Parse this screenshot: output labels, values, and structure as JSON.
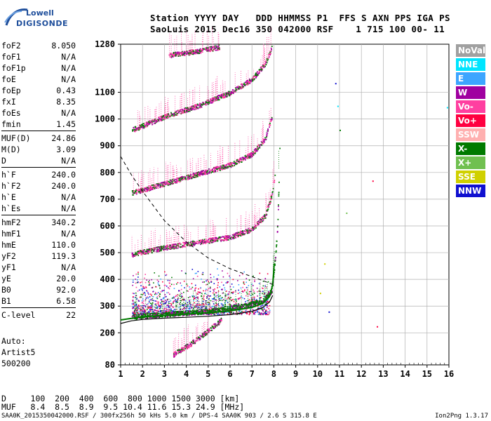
{
  "logo": {
    "line1": "Lowell",
    "line2": "DIGISONDE"
  },
  "header": {
    "line1": "Station YYYY DAY   DDD HHMMSS P1  FFS S AXN PPS IGA PS",
    "line2": "SaoLuis 2015 Dec16 350 042000 RSF    1 715 100 00- 11"
  },
  "params": [
    [
      {
        "n": "foF2",
        "v": "8.050"
      },
      {
        "n": "foF1",
        "v": "N/A"
      },
      {
        "n": "foF1p",
        "v": "N/A"
      },
      {
        "n": "foE",
        "v": "N/A"
      },
      {
        "n": "foEp",
        "v": "0.43"
      },
      {
        "n": "fxI",
        "v": "8.35"
      },
      {
        "n": "foEs",
        "v": "N/A"
      },
      {
        "n": "fmin",
        "v": "1.45"
      }
    ],
    [
      {
        "n": "MUF(D)",
        "v": "24.86"
      },
      {
        "n": "M(D)",
        "v": "3.09"
      },
      {
        "n": "D",
        "v": "N/A"
      }
    ],
    [
      {
        "n": "h`F",
        "v": "240.0"
      },
      {
        "n": "h`F2",
        "v": "240.0"
      },
      {
        "n": "h`E",
        "v": "N/A"
      },
      {
        "n": "h`Es",
        "v": "N/A"
      }
    ],
    [
      {
        "n": "hmF2",
        "v": "340.2"
      },
      {
        "n": "hmF1",
        "v": "N/A"
      },
      {
        "n": "hmE",
        "v": "110.0"
      },
      {
        "n": "yF2",
        "v": "119.3"
      },
      {
        "n": "yF1",
        "v": "N/A"
      },
      {
        "n": "yE",
        "v": "20.0"
      },
      {
        "n": "B0",
        "v": "92.0"
      },
      {
        "n": "B1",
        "v": "6.58"
      }
    ],
    [
      {
        "n": "C-level",
        "v": "22"
      }
    ]
  ],
  "auto": {
    "line1": "Auto:",
    "line2": "Artist5",
    "line3": "500200"
  },
  "legend": [
    {
      "label": "NoVal",
      "color": "#a0a0a0"
    },
    {
      "label": "NNE",
      "color": "#00e5ff"
    },
    {
      "label": "E",
      "color": "#3da5ff"
    },
    {
      "label": "W",
      "color": "#a000a0"
    },
    {
      "label": "Vo-",
      "color": "#ff3fa0"
    },
    {
      "label": "Vo+",
      "color": "#ff0040"
    },
    {
      "label": "SSW",
      "color": "#ffb0b0"
    },
    {
      "label": "X-",
      "color": "#007a00"
    },
    {
      "label": "X+",
      "color": "#70c050"
    },
    {
      "label": "SSE",
      "color": "#d0d000"
    },
    {
      "label": "NNW",
      "color": "#1010d0"
    }
  ],
  "muf_table": {
    "line1": "D     100  200  400  600  800 1000 1500 3000 [km]",
    "line2": "MUF   8.4  8.5  8.9  9.5 10.4 11.6 15.3 24.9 [MHz]"
  },
  "footer": "SAA0K_2015350042000.RSF / 300fx256h 50 kHs 5.0 km / DPS-4 SAA0K 903 / 2.6 S 315.8 E",
  "version": "Ion2Png 1.3.17",
  "chart_data": {
    "type": "scatter",
    "xlim": [
      1,
      16
    ],
    "ylim": [
      80,
      1280
    ],
    "x_ticks": [
      "1",
      "2",
      "3",
      "4",
      "5",
      "6",
      "7",
      "8",
      "9",
      "10",
      "11",
      "12",
      "13",
      "14",
      "15",
      "16"
    ],
    "y_ticks": [
      "80",
      "200",
      "300",
      "400",
      "500",
      "600",
      "700",
      "800",
      "900",
      "1000",
      "1100",
      "1280"
    ],
    "grid": true,
    "profile_curve": [
      [
        1.0,
        235
      ],
      [
        1.5,
        245
      ],
      [
        2,
        250
      ],
      [
        3,
        255
      ],
      [
        4,
        258
      ],
      [
        5,
        262
      ],
      [
        6,
        268
      ],
      [
        7,
        280
      ],
      [
        7.5,
        295
      ],
      [
        7.8,
        315
      ],
      [
        7.95,
        340
      ]
    ],
    "trace_curve": [
      [
        1.0,
        248
      ],
      [
        2,
        260
      ],
      [
        3,
        265
      ],
      [
        4,
        270
      ],
      [
        5,
        275
      ],
      [
        6,
        282
      ],
      [
        7,
        295
      ],
      [
        7.5,
        310
      ],
      [
        7.8,
        335
      ],
      [
        7.95,
        380
      ],
      [
        8.02,
        460
      ]
    ],
    "dashed_curve": [
      [
        1.0,
        860
      ],
      [
        1.5,
        790
      ],
      [
        2,
        730
      ],
      [
        3,
        620
      ],
      [
        4,
        540
      ],
      [
        5,
        480
      ],
      [
        6,
        440
      ],
      [
        7,
        410
      ],
      [
        7.5,
        395
      ],
      [
        8.0,
        380
      ]
    ],
    "echo_bands": [
      {
        "series": "X-",
        "color": "#007a00",
        "points": [
          [
            1.5,
            260
          ],
          [
            3,
            270
          ],
          [
            5,
            282
          ],
          [
            6.5,
            300
          ],
          [
            7.5,
            320
          ],
          [
            7.9,
            360
          ],
          [
            8.05,
            480
          ],
          [
            8.15,
            600
          ],
          [
            8.2,
            720
          ],
          [
            8.25,
            900
          ]
        ]
      },
      {
        "series": "Vo-",
        "color": "#ff3fa0",
        "points": [
          [
            1.5,
            495
          ],
          [
            3,
            520
          ],
          [
            4.5,
            540
          ],
          [
            6,
            560
          ],
          [
            7,
            590
          ],
          [
            7.6,
            640
          ],
          [
            7.9,
            720
          ],
          [
            8.05,
            800
          ]
        ]
      },
      {
        "series": "Vo-",
        "color": "#ff3fa0",
        "points": [
          [
            1.5,
            725
          ],
          [
            3,
            760
          ],
          [
            4.5,
            795
          ],
          [
            6,
            830
          ],
          [
            7,
            870
          ],
          [
            7.6,
            930
          ],
          [
            7.9,
            1010
          ]
        ]
      },
      {
        "series": "Vo-",
        "color": "#ff3fa0",
        "points": [
          [
            1.5,
            960
          ],
          [
            3,
            1010
          ],
          [
            4.5,
            1050
          ],
          [
            6,
            1100
          ],
          [
            7,
            1150
          ],
          [
            7.6,
            1210
          ],
          [
            7.9,
            1270
          ]
        ]
      },
      {
        "series": "Vo-",
        "color": "#ff3fa0",
        "points": [
          [
            3.2,
            1240
          ],
          [
            4.5,
            1255
          ],
          [
            5.5,
            1270
          ]
        ]
      },
      {
        "series": "Vo-",
        "color": "#ff3fa0",
        "points": [
          [
            3.4,
            120
          ],
          [
            4.2,
            160
          ],
          [
            5.0,
            210
          ],
          [
            5.6,
            250
          ]
        ]
      }
    ]
  }
}
